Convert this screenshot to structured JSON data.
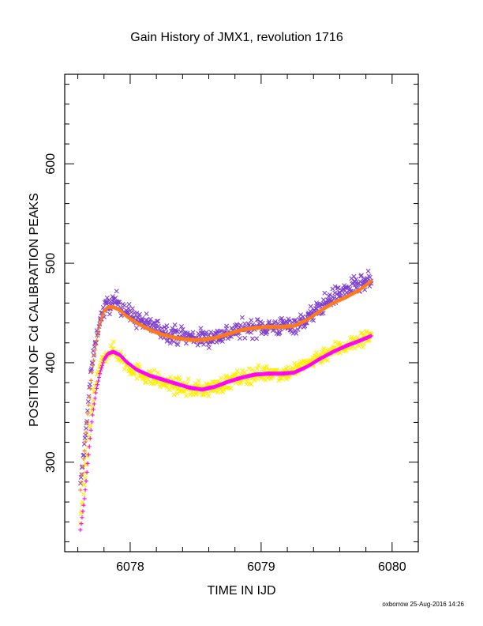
{
  "chart_data": {
    "type": "scatter",
    "title": "Gain History of JMX1, revolution 1716",
    "xlabel": "TIME IN IJD",
    "ylabel": "POSITION OF Cd CALIBRATION PEAKS",
    "xlim": [
      6077.5,
      6080.2
    ],
    "ylim": [
      210,
      690
    ],
    "x_ticks": [
      6078,
      6079,
      6080
    ],
    "x_tick_labels": [
      "6078",
      "6079",
      "6080"
    ],
    "y_ticks": [
      300,
      400,
      500,
      600
    ],
    "y_tick_labels": [
      "300",
      "400",
      "500",
      "600"
    ],
    "grid": false,
    "legend": "none",
    "series": [
      {
        "marker": "x",
        "color": "#7f3fd0",
        "scatter": 16,
        "x": [
          6077.62,
          6077.66,
          6077.7,
          6077.74,
          6077.78,
          6077.82,
          6077.86,
          6077.9,
          6077.95,
          6078.0,
          6078.1,
          6078.2,
          6078.3,
          6078.4,
          6078.5,
          6078.6,
          6078.7,
          6078.8,
          6078.9,
          6079.0,
          6079.1,
          6079.2,
          6079.3,
          6079.4,
          6079.5,
          6079.6,
          6079.7,
          6079.8,
          6079.84
        ],
        "values": [
          275,
          330,
          390,
          425,
          448,
          457,
          460,
          462,
          455,
          448,
          440,
          435,
          430,
          427,
          425,
          425,
          428,
          432,
          435,
          436,
          436,
          437,
          440,
          450,
          462,
          470,
          476,
          480,
          483
        ]
      },
      {
        "marker": "+",
        "color": "#ff7a1a",
        "scatter": 0,
        "x": [
          6077.62,
          6077.65,
          6077.68,
          6077.71,
          6077.74,
          6077.77,
          6077.8,
          6077.83,
          6077.87,
          6077.92,
          6077.97,
          6078.05,
          6078.15,
          6078.25,
          6078.35,
          6078.45,
          6078.55,
          6078.65,
          6078.75,
          6078.85,
          6078.95,
          6079.05,
          6079.15,
          6079.25,
          6079.35,
          6079.45,
          6079.55,
          6079.65,
          6079.75,
          6079.84
        ],
        "values": [
          272,
          310,
          355,
          395,
          420,
          440,
          452,
          456,
          456,
          453,
          447,
          440,
          433,
          428,
          425,
          423,
          423,
          425,
          429,
          433,
          435,
          436,
          436,
          437,
          443,
          452,
          460,
          466,
          473,
          482
        ]
      },
      {
        "marker": "x",
        "color": "#ffee00",
        "scatter": 14,
        "x": [
          6077.62,
          6077.66,
          6077.7,
          6077.74,
          6077.78,
          6077.82,
          6077.86,
          6077.9,
          6077.95,
          6078.0,
          6078.1,
          6078.2,
          6078.3,
          6078.4,
          6078.5,
          6078.6,
          6078.7,
          6078.8,
          6078.9,
          6079.0,
          6079.1,
          6079.2,
          6079.3,
          6079.4,
          6079.5,
          6079.6,
          6079.7,
          6079.8,
          6079.84
        ],
        "values": [
          240,
          290,
          345,
          380,
          400,
          410,
          412,
          410,
          402,
          395,
          388,
          383,
          378,
          375,
          373,
          374,
          378,
          383,
          387,
          389,
          390,
          390,
          395,
          403,
          410,
          415,
          420,
          425,
          428
        ]
      },
      {
        "marker": "+",
        "color": "#ff00ff",
        "scatter": 0,
        "x": [
          6077.62,
          6077.65,
          6077.68,
          6077.71,
          6077.74,
          6077.77,
          6077.8,
          6077.83,
          6077.87,
          6077.92,
          6077.97,
          6078.05,
          6078.15,
          6078.25,
          6078.35,
          6078.45,
          6078.55,
          6078.65,
          6078.75,
          6078.85,
          6078.95,
          6079.05,
          6079.15,
          6079.25,
          6079.35,
          6079.45,
          6079.55,
          6079.65,
          6079.75,
          6079.84
        ],
        "values": [
          232,
          262,
          305,
          345,
          372,
          390,
          403,
          409,
          411,
          408,
          401,
          393,
          387,
          383,
          379,
          375,
          373,
          376,
          381,
          385,
          388,
          389,
          389,
          390,
          396,
          404,
          411,
          417,
          422,
          427
        ]
      }
    ]
  },
  "footer": {
    "credit": "oxborrow 25-Aug-2016 14:26"
  }
}
